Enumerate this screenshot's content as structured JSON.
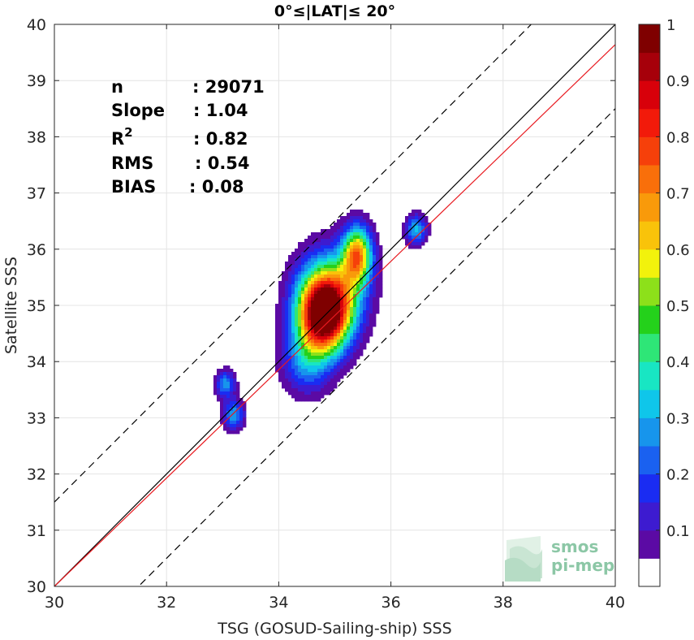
{
  "chart_data": {
    "type": "contour",
    "title": "0°≤|LAT|≤ 20°",
    "xlabel": "TSG (GOSUD-Sailing-ship) SSS",
    "ylabel": "Satellite SSS",
    "xlim": [
      30,
      40
    ],
    "ylim": [
      30,
      40
    ],
    "xticks": [
      30,
      32,
      34,
      36,
      38,
      40
    ],
    "yticks": [
      30,
      31,
      32,
      33,
      34,
      35,
      36,
      37,
      38,
      39,
      40
    ],
    "grid": true,
    "stats": [
      {
        "label": "n",
        "value": ": 29071"
      },
      {
        "label": "Slope",
        "value": ": 1.04"
      },
      {
        "label": "R",
        "sup": "2",
        "value": ": 0.82"
      },
      {
        "label": "RMS",
        "value": ": 0.54"
      },
      {
        "label": "BIAS",
        "value": ": 0.08"
      }
    ],
    "reference_lines": [
      {
        "name": "1:1",
        "color": "#000000",
        "style": "solid",
        "intercept": 0,
        "slope": 1
      },
      {
        "name": "fit",
        "color": "#e8191f",
        "style": "solid",
        "intercept": 30,
        "slope": 0.964,
        "x0": 30
      },
      {
        "name": "+1.5",
        "color": "#000000",
        "style": "dashed",
        "intercept": 1.5,
        "slope": 1
      },
      {
        "name": "-1.5",
        "color": "#000000",
        "style": "dashed",
        "intercept": -1.5,
        "slope": 1
      }
    ],
    "density_peaks": [
      {
        "x": 34.8,
        "y": 34.8,
        "sx": 0.32,
        "sy": 0.45,
        "amp": 1.0
      },
      {
        "x": 35.4,
        "y": 35.9,
        "sx": 0.18,
        "sy": 0.35,
        "amp": 0.65
      },
      {
        "x": 34.95,
        "y": 35.3,
        "sx": 0.4,
        "sy": 0.5,
        "amp": 0.45
      },
      {
        "x": 36.45,
        "y": 36.35,
        "sx": 0.13,
        "sy": 0.18,
        "amp": 0.32
      },
      {
        "x": 33.05,
        "y": 33.6,
        "sx": 0.12,
        "sy": 0.17,
        "amp": 0.28
      },
      {
        "x": 33.2,
        "y": 33.05,
        "sx": 0.13,
        "sy": 0.18,
        "amp": 0.29
      },
      {
        "x": 34.5,
        "y": 34.0,
        "sx": 0.3,
        "sy": 0.4,
        "amp": 0.25
      }
    ],
    "colorbar": {
      "min": 0,
      "max": 1,
      "ticks": [
        "0.1",
        "0.2",
        "0.3",
        "0.4",
        "0.5",
        "0.6",
        "0.7",
        "0.8",
        "0.9",
        "1"
      ],
      "colors": [
        "#ffffff",
        "#5b0aa4",
        "#3d1bd0",
        "#1a2cf2",
        "#1a61f0",
        "#1795ec",
        "#0fc6ea",
        "#18e6c3",
        "#2ee677",
        "#24d11b",
        "#8de01a",
        "#f2f20c",
        "#f9c30a",
        "#f99a0a",
        "#f96f0a",
        "#f6400a",
        "#f21a0a",
        "#d8000a",
        "#a6000a",
        "#7f0000"
      ]
    }
  },
  "logo": {
    "line1": "smos",
    "line2": "pi-mep"
  }
}
